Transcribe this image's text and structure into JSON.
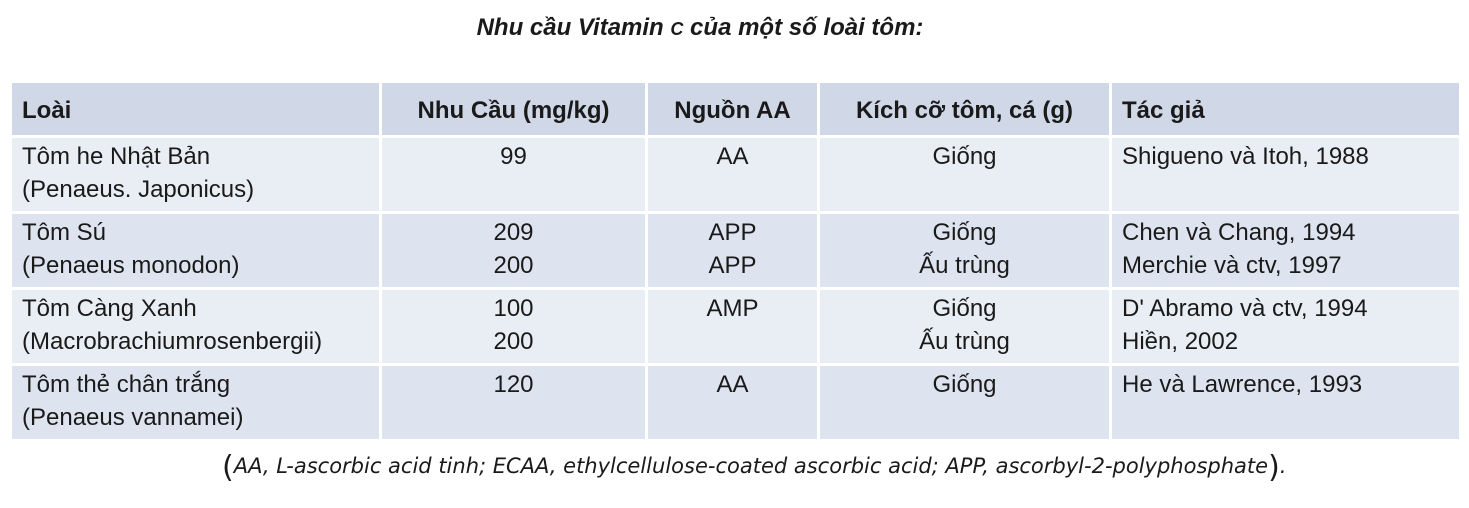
{
  "title": {
    "prefix": "Nhu cầu Vitamin ",
    "letter": "C",
    "suffix": " của một số loài tôm:"
  },
  "table": {
    "headers": [
      "Loài",
      "Nhu Cầu (mg/kg)",
      "Nguồn AA",
      "Kích cỡ tôm, cá  (g)",
      "Tác giả"
    ],
    "rows": [
      {
        "species": [
          "Tôm he Nhật Bản",
          "(Penaeus. Japonicus)"
        ],
        "requirement": [
          "99"
        ],
        "source": [
          "AA"
        ],
        "size": [
          "Giống"
        ],
        "author": [
          "Shigueno và Itoh, 1988"
        ]
      },
      {
        "species": [
          "Tôm Sú",
          "(Penaeus monodon)"
        ],
        "requirement": [
          "209",
          "200"
        ],
        "source": [
          "APP",
          "APP"
        ],
        "size": [
          "Giống",
          "Ấu trùng"
        ],
        "author": [
          "Chen và Chang, 1994",
          "Merchie và ctv, 1997"
        ]
      },
      {
        "species": [
          "Tôm Càng Xanh",
          "(Macrobrachiumrosenbergii)"
        ],
        "requirement": [
          "100",
          "200"
        ],
        "source": [
          "AMP"
        ],
        "size": [
          "Giống",
          "Ấu trùng"
        ],
        "author": [
          "D' Abramo và ctv, 1994",
          "Hiền, 2002"
        ]
      },
      {
        "species": [
          "Tôm thẻ chân trắng",
          "(Penaeus  vannamei)"
        ],
        "requirement": [
          "120"
        ],
        "source": [
          "AA"
        ],
        "size": [
          "Giống"
        ],
        "author": [
          "He và Lawrence, 1993"
        ]
      }
    ]
  },
  "footnote": {
    "open": "(",
    "text": "AA, L-ascorbic acid tinh; ECAA, ethylcellulose-coated ascorbic acid; APP, ascorbyl-2-polyphosphate",
    "close": ")",
    "end": "."
  }
}
